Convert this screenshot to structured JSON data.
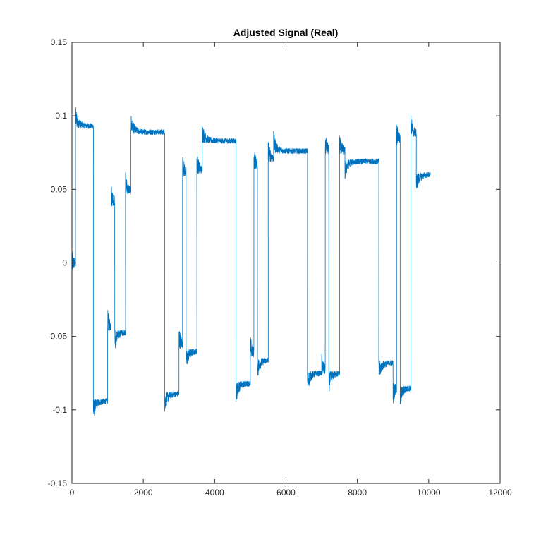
{
  "chart_data": {
    "type": "line",
    "title": "Adjusted Signal (Real)",
    "xlabel": "",
    "ylabel": "",
    "xlim": [
      0,
      12000
    ],
    "ylim": [
      -0.15,
      0.15
    ],
    "xticks": [
      0,
      2000,
      4000,
      6000,
      8000,
      10000,
      12000
    ],
    "xtick_labels": [
      "0",
      "2000",
      "4000",
      "6000",
      "8000",
      "10000",
      "12000"
    ],
    "yticks": [
      -0.15,
      -0.1,
      -0.05,
      0,
      0.05,
      0.1,
      0.15
    ],
    "ytick_labels": [
      "-0.15",
      "-0.1",
      "-0.05",
      "0",
      "0.05",
      "0.1",
      "0.15"
    ],
    "grid": false,
    "line_color": "#0072BD",
    "series": [
      {
        "segments": [
          {
            "x0": 0,
            "x1": 100,
            "level": 0.0
          },
          {
            "x0": 100,
            "x1": 600,
            "level": 0.093
          },
          {
            "x0": 600,
            "x1": 1000,
            "level": -0.094
          },
          {
            "x0": 1000,
            "x1": 1100,
            "level": -0.045
          },
          {
            "x0": 1100,
            "x1": 1200,
            "level": 0.04
          },
          {
            "x0": 1200,
            "x1": 1500,
            "level": -0.047
          },
          {
            "x0": 1500,
            "x1": 1650,
            "level": 0.048
          },
          {
            "x0": 1650,
            "x1": 2600,
            "level": 0.089
          },
          {
            "x0": 2600,
            "x1": 3000,
            "level": -0.089
          },
          {
            "x0": 3000,
            "x1": 3100,
            "level": -0.057
          },
          {
            "x0": 3100,
            "x1": 3200,
            "level": 0.06
          },
          {
            "x0": 3200,
            "x1": 3500,
            "level": -0.06
          },
          {
            "x0": 3500,
            "x1": 3650,
            "level": 0.062
          },
          {
            "x0": 3650,
            "x1": 4600,
            "level": 0.083
          },
          {
            "x0": 4600,
            "x1": 5000,
            "level": -0.082
          },
          {
            "x0": 5000,
            "x1": 5100,
            "level": -0.063
          },
          {
            "x0": 5100,
            "x1": 5200,
            "level": 0.065
          },
          {
            "x0": 5200,
            "x1": 5500,
            "level": -0.066
          },
          {
            "x0": 5500,
            "x1": 5650,
            "level": 0.07
          },
          {
            "x0": 5650,
            "x1": 6600,
            "level": 0.076
          },
          {
            "x0": 6600,
            "x1": 7000,
            "level": -0.075
          },
          {
            "x0": 7000,
            "x1": 7100,
            "level": -0.075
          },
          {
            "x0": 7100,
            "x1": 7200,
            "level": 0.075
          },
          {
            "x0": 7200,
            "x1": 7500,
            "level": -0.075
          },
          {
            "x0": 7500,
            "x1": 7650,
            "level": 0.075
          },
          {
            "x0": 7650,
            "x1": 8600,
            "level": 0.069
          },
          {
            "x0": 8600,
            "x1": 9000,
            "level": -0.068
          },
          {
            "x0": 9000,
            "x1": 9100,
            "level": -0.083
          },
          {
            "x0": 9100,
            "x1": 9200,
            "level": 0.082
          },
          {
            "x0": 9200,
            "x1": 9500,
            "level": -0.085
          },
          {
            "x0": 9500,
            "x1": 9650,
            "level": 0.087
          },
          {
            "x0": 9650,
            "x1": 10050,
            "level": 0.06
          }
        ]
      }
    ]
  }
}
